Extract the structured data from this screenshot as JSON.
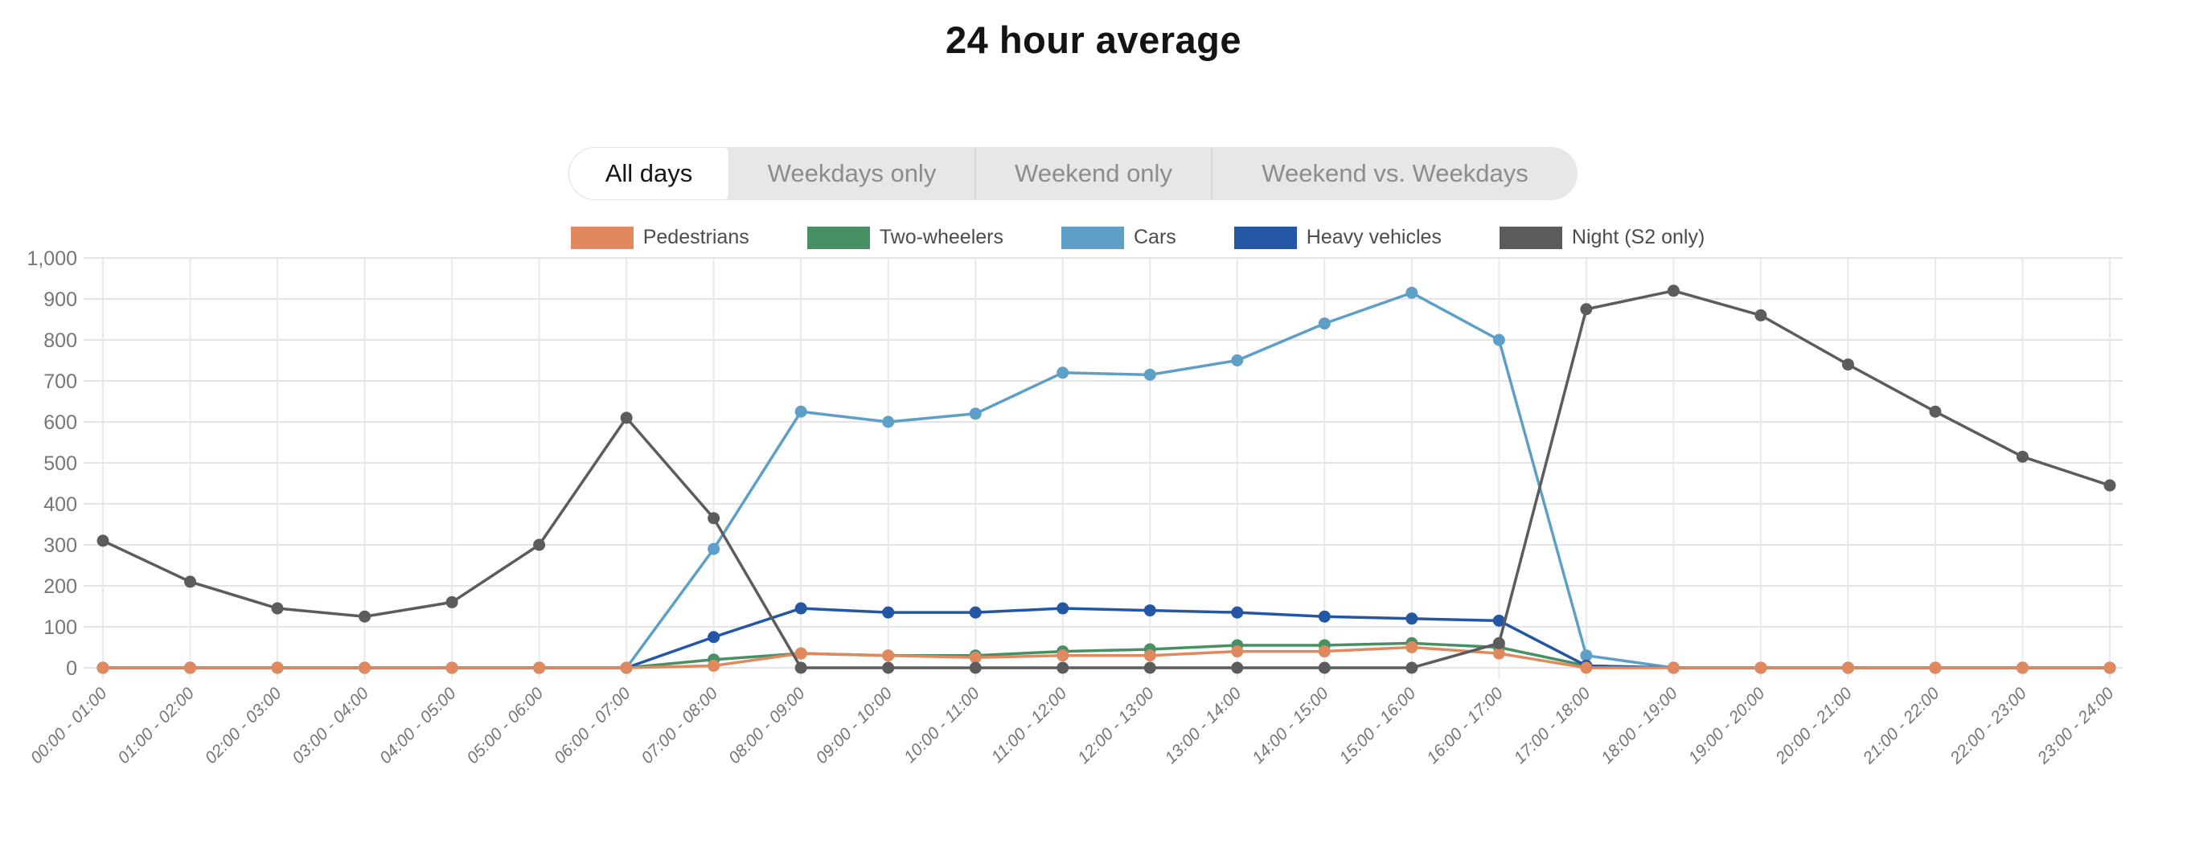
{
  "tabs": {
    "items": [
      {
        "label": "All days",
        "active": true
      },
      {
        "label": "Weekdays only",
        "active": false
      },
      {
        "label": "Weekend only",
        "active": false
      },
      {
        "label": "Weekend vs. Weekdays",
        "active": false
      }
    ]
  },
  "chart_data": {
    "type": "line",
    "title": "24 hour average",
    "categories": [
      "00:00 - 01:00",
      "01:00 - 02:00",
      "02:00 - 03:00",
      "03:00 - 04:00",
      "04:00 - 05:00",
      "05:00 - 06:00",
      "06:00 - 07:00",
      "07:00 - 08:00",
      "08:00 - 09:00",
      "09:00 - 10:00",
      "10:00 - 11:00",
      "11:00 - 12:00",
      "12:00 - 13:00",
      "13:00 - 14:00",
      "14:00 - 15:00",
      "15:00 - 16:00",
      "16:00 - 17:00",
      "17:00 - 18:00",
      "18:00 - 19:00",
      "19:00 - 20:00",
      "20:00 - 21:00",
      "21:00 - 22:00",
      "22:00 - 23:00",
      "23:00 - 24:00"
    ],
    "series": [
      {
        "name": "Pedestrians",
        "color": "#E1895E",
        "values": [
          0,
          0,
          0,
          0,
          0,
          0,
          0,
          5,
          35,
          30,
          25,
          30,
          30,
          40,
          40,
          50,
          35,
          0,
          0,
          0,
          0,
          0,
          0,
          0
        ]
      },
      {
        "name": "Two-wheelers",
        "color": "#479064",
        "values": [
          0,
          0,
          0,
          0,
          0,
          0,
          0,
          20,
          35,
          30,
          30,
          40,
          45,
          55,
          55,
          60,
          50,
          5,
          0,
          0,
          0,
          0,
          0,
          0
        ]
      },
      {
        "name": "Cars",
        "color": "#5D9FC6",
        "values": [
          0,
          0,
          0,
          0,
          0,
          0,
          0,
          290,
          625,
          600,
          620,
          720,
          715,
          750,
          840,
          915,
          800,
          30,
          0,
          0,
          0,
          0,
          0,
          0
        ]
      },
      {
        "name": "Heavy vehicles",
        "color": "#2457A3",
        "values": [
          0,
          0,
          0,
          0,
          0,
          0,
          0,
          75,
          145,
          135,
          135,
          145,
          140,
          135,
          125,
          120,
          115,
          5,
          0,
          0,
          0,
          0,
          0,
          0
        ]
      },
      {
        "name": "Night (S2 only)",
        "color": "#5C5C5C",
        "values": [
          310,
          210,
          145,
          125,
          160,
          300,
          610,
          365,
          0,
          0,
          0,
          0,
          0,
          0,
          0,
          0,
          60,
          875,
          920,
          860,
          740,
          625,
          515,
          445
        ]
      }
    ],
    "draw_order": [
      1,
      2,
      3,
      0,
      4
    ],
    "xlabel": "",
    "ylabel": "",
    "ylim": [
      0,
      1000
    ],
    "y_tick_step": 100,
    "y_ticks": [
      "0",
      "100",
      "200",
      "300",
      "400",
      "500",
      "600",
      "700",
      "800",
      "900",
      "1,000"
    ],
    "grid": true,
    "legend_position": "top",
    "x_tick_rotation": -45
  }
}
